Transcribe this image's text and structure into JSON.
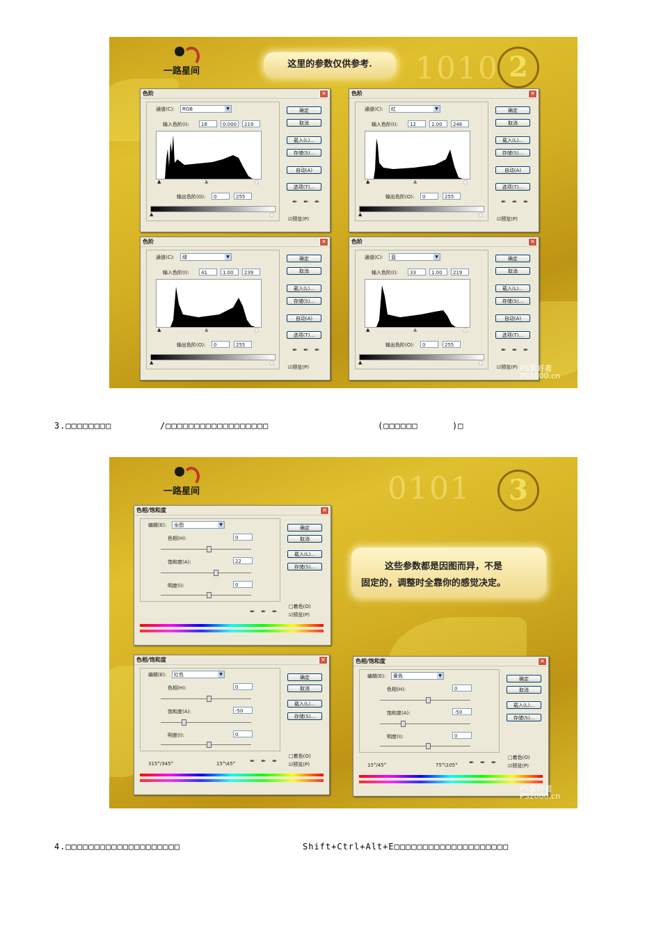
{
  "figure1": {
    "logo_text": "一路星间",
    "note": "这里的参数仅供参考.",
    "number": "2",
    "bg_digits": "1010",
    "watermark": "PS爱好者",
    "watermark_url": "PS2000.cn",
    "dialogs": [
      {
        "title": "色阶",
        "channel_label": "通道(C):",
        "channel": "RGB",
        "input_label": "输入色阶(I):",
        "in1": "18",
        "in2": "0.000",
        "in3": "219",
        "output_label": "输出色阶(O):",
        "out1": "0",
        "out2": "255",
        "btn_ok": "确定",
        "btn_cancel": "取消",
        "btn_load": "载入(L)...",
        "btn_save": "存储(S)...",
        "btn_auto": "自动(A)",
        "btn_options": "选项(T)...",
        "preview": "☑预览(P)"
      },
      {
        "title": "色阶",
        "channel_label": "通道(C):",
        "channel": "红",
        "input_label": "输入色阶(I):",
        "in1": "12",
        "in2": "1.00",
        "in3": "246",
        "output_label": "输出色阶(O):",
        "out1": "0",
        "out2": "255",
        "btn_ok": "确定",
        "btn_cancel": "取消",
        "btn_load": "载入(L)...",
        "btn_save": "存储(S)...",
        "btn_auto": "自动(A)",
        "btn_options": "选项(T)...",
        "preview": "☑预览(P)"
      },
      {
        "title": "色阶",
        "channel_label": "通道(C):",
        "channel": "绿",
        "input_label": "输入色阶(I):",
        "in1": "41",
        "in2": "1.00",
        "in3": "239",
        "output_label": "输出色阶(O):",
        "out1": "0",
        "out2": "255",
        "btn_ok": "确定",
        "btn_cancel": "取消",
        "btn_load": "载入(L)...",
        "btn_save": "存储(S)...",
        "btn_auto": "自动(A)",
        "btn_options": "选项(T)...",
        "preview": "☑预览(P)"
      },
      {
        "title": "色阶",
        "channel_label": "通道(C):",
        "channel": "蓝",
        "input_label": "输入色阶(I):",
        "in1": "33",
        "in2": "1.00",
        "in3": "219",
        "output_label": "输出色阶(O):",
        "out1": "0",
        "out2": "255",
        "btn_ok": "确定",
        "btn_cancel": "取消",
        "btn_load": "载入(L)...",
        "btn_save": "存储(S)...",
        "btn_auto": "自动(A)",
        "btn_options": "选项(T)...",
        "preview": "☑预览(P)"
      }
    ]
  },
  "paragraph3": {
    "part1": "3.□□□□□□□□",
    "part2": "/□□□□□□□□□□□□□□□□□□",
    "part3": "(□□□□□□",
    "part4": ")□"
  },
  "figure2": {
    "logo_text": "一路星间",
    "number": "3",
    "bg_digits": "0101",
    "note_line1": "这些参数都是因图而异，不是",
    "note_line2": "固定的，调整时全靠你的感觉决定。",
    "watermark": "PS爱好者",
    "watermark_url": "PS2000.cn",
    "dialogs": [
      {
        "title": "色相/饱和度",
        "edit_label": "编辑(E):",
        "edit": "全图",
        "hue_label": "色相(H):",
        "hue": "0",
        "sat_label": "饱和度(A):",
        "sat": "22",
        "light_label": "明度(I):",
        "light": "0",
        "btn_ok": "确定",
        "btn_cancel": "取消",
        "btn_load": "载入(L)...",
        "btn_save": "存储(S)...",
        "colorize": "□着色(O)",
        "preview": "☑预览(P)",
        "range_left": "",
        "range_right": ""
      },
      {
        "title": "色相/饱和度",
        "edit_label": "编辑(E):",
        "edit": "红色",
        "hue_label": "色相(H):",
        "hue": "0",
        "sat_label": "饱和度(A):",
        "sat": "-50",
        "light_label": "明度(I):",
        "light": "0",
        "btn_ok": "确定",
        "btn_cancel": "取消",
        "btn_load": "载入(L)...",
        "btn_save": "存储(S)...",
        "colorize": "□着色(O)",
        "preview": "☑预览(P)",
        "range_left": "315°/345°",
        "range_right": "15°\\45°"
      },
      {
        "title": "色相/饱和度",
        "edit_label": "编辑(E):",
        "edit": "黄色",
        "hue_label": "色相(H):",
        "hue": "0",
        "sat_label": "饱和度(A):",
        "sat": "-50",
        "light_label": "明度(I):",
        "light": "0",
        "btn_ok": "确定",
        "btn_cancel": "取消",
        "btn_load": "载入(L)...",
        "btn_save": "存储(S)...",
        "colorize": "□着色(O)",
        "preview": "☑预览(P)",
        "range_left": "15°/45°",
        "range_right": "75°\\105°"
      }
    ]
  },
  "paragraph4": {
    "part1": "4.□□□□□□□□□□□□□□□□□□□□",
    "part2": "Shift+Ctrl+Alt+E□□□□□□□□□□□□□□□□□□□□"
  }
}
